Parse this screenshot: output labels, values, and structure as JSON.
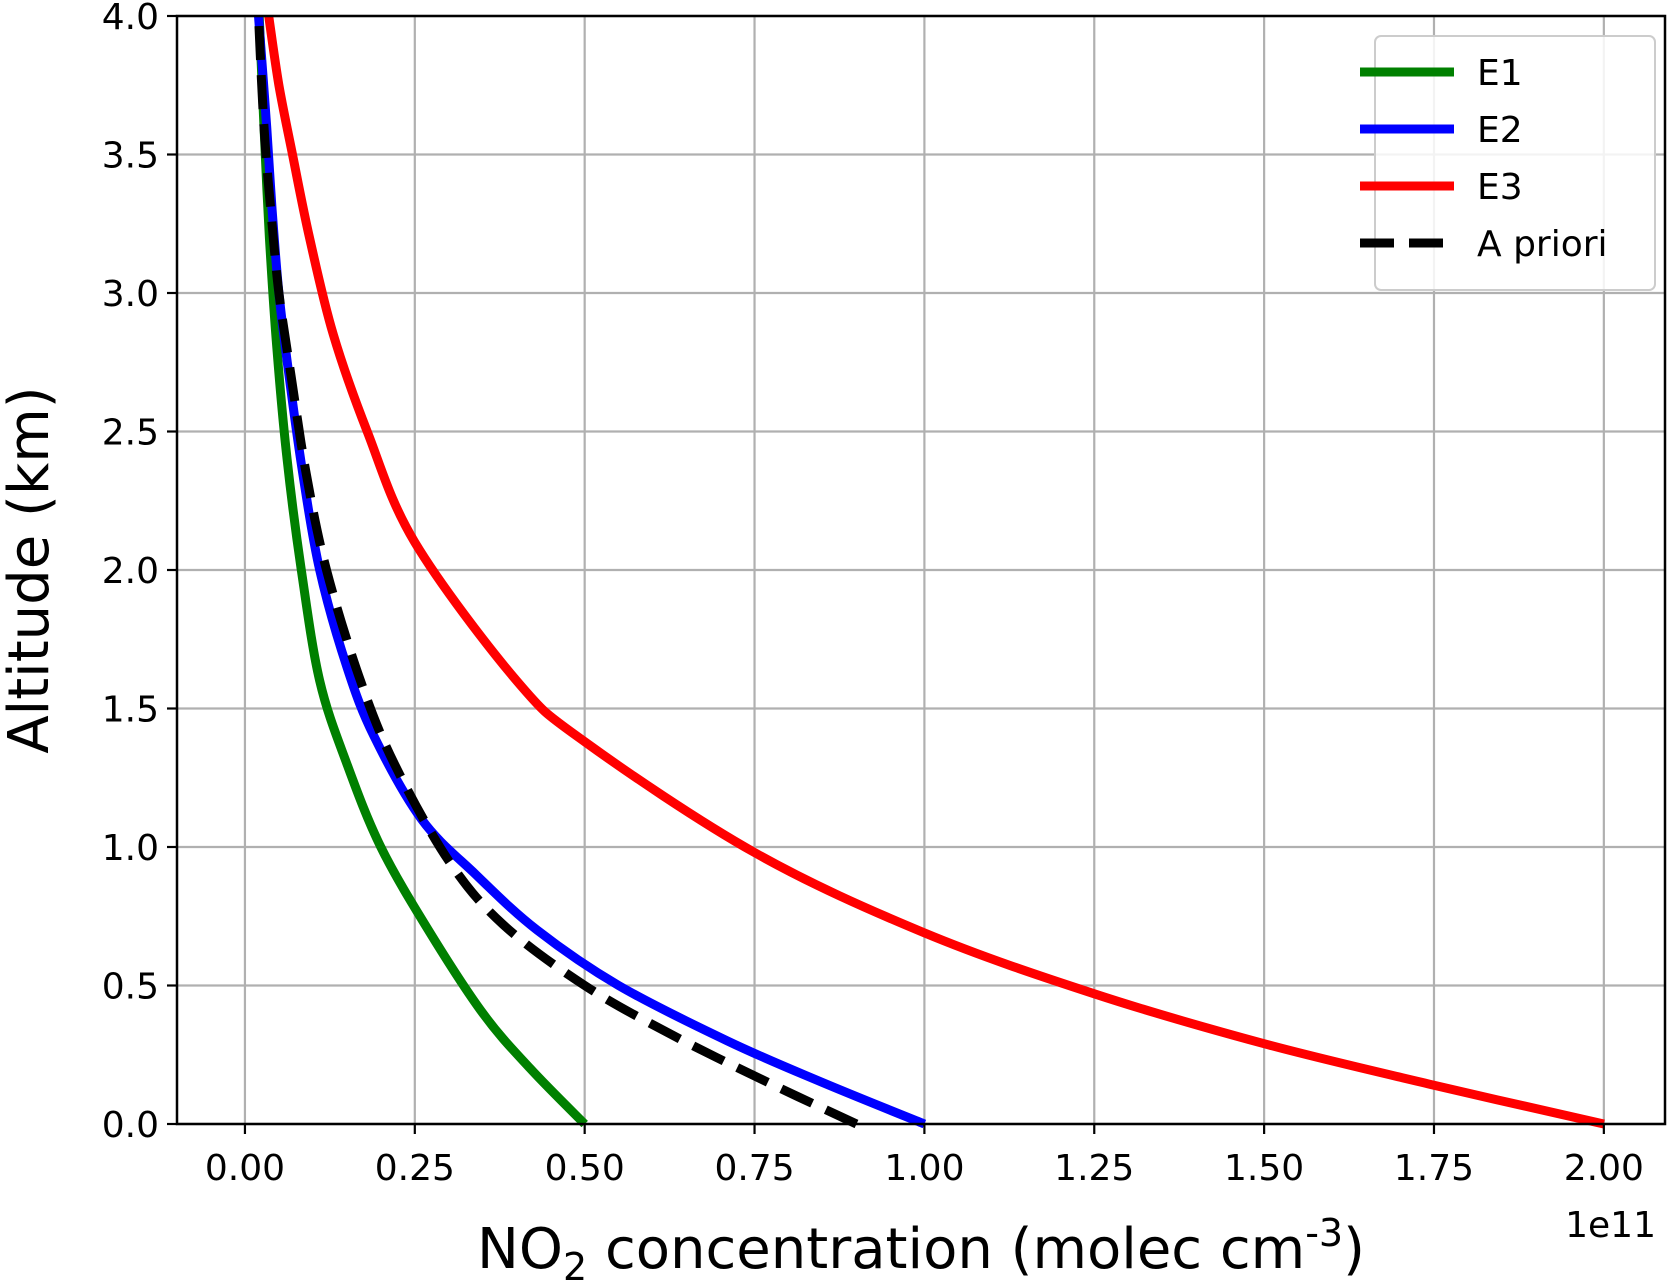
{
  "chart_data": {
    "type": "line",
    "xlabel_parts": {
      "main": "NO",
      "sub": "2",
      "rest": " concentration (molec cm",
      "sup": "-3",
      "end": ")"
    },
    "ylabel": "Altitude (km)",
    "x_offset_label": "1e11",
    "xlim": [
      -0.1,
      2.09
    ],
    "ylim": [
      0.0,
      4.0
    ],
    "x_ticks": [
      0.0,
      0.25,
      0.5,
      0.75,
      1.0,
      1.25,
      1.5,
      1.75,
      2.0
    ],
    "x_tick_labels": [
      "0.00",
      "0.25",
      "0.50",
      "0.75",
      "1.00",
      "1.25",
      "1.50",
      "1.75",
      "2.00"
    ],
    "y_ticks": [
      0.0,
      0.5,
      1.0,
      1.5,
      2.0,
      2.5,
      3.0,
      3.5,
      4.0
    ],
    "y_tick_labels": [
      "0.0",
      "0.5",
      "1.0",
      "1.5",
      "2.0",
      "2.5",
      "3.0",
      "3.5",
      "4.0"
    ],
    "grid": true,
    "legend_position": "top-right",
    "series": [
      {
        "name": "E1",
        "color": "#008000",
        "dash": "solid",
        "x": [
          0.5,
          0.42,
          0.35,
          0.27,
          0.2,
          0.15,
          0.11,
          0.083,
          0.062,
          0.047,
          0.036,
          0.028,
          0.021
        ],
        "y": [
          0.0,
          0.2,
          0.4,
          0.7,
          1.0,
          1.3,
          1.6,
          2.0,
          2.4,
          2.8,
          3.2,
          3.6,
          4.0
        ]
      },
      {
        "name": "E2",
        "color": "#0000ff",
        "dash": "solid",
        "x": [
          1.0,
          0.85,
          0.71,
          0.55,
          0.43,
          0.34,
          0.26,
          0.19,
          0.15,
          0.11,
          0.085,
          0.065,
          0.05,
          0.04,
          0.032,
          0.02
        ],
        "y": [
          0.0,
          0.15,
          0.3,
          0.5,
          0.7,
          0.9,
          1.1,
          1.4,
          1.65,
          2.0,
          2.35,
          2.7,
          3.0,
          3.3,
          3.6,
          4.0
        ]
      },
      {
        "name": "E3",
        "color": "#ff0000",
        "dash": "solid",
        "x": [
          2.0,
          1.75,
          1.5,
          1.25,
          1.0,
          0.75,
          0.5,
          0.4,
          0.25,
          0.18,
          0.13,
          0.095,
          0.07,
          0.05,
          0.035
        ],
        "y": [
          0.0,
          0.14,
          0.29,
          0.47,
          0.69,
          0.98,
          1.38,
          1.6,
          2.1,
          2.5,
          2.85,
          3.2,
          3.5,
          3.75,
          4.0
        ]
      },
      {
        "name": "A priori",
        "color": "#000000",
        "dash": "dashed",
        "x": [
          0.9,
          0.77,
          0.63,
          0.5,
          0.38,
          0.3,
          0.22,
          0.17,
          0.12,
          0.09,
          0.068,
          0.05,
          0.038,
          0.028,
          0.02
        ],
        "y": [
          0.0,
          0.15,
          0.32,
          0.5,
          0.72,
          0.95,
          1.3,
          1.6,
          2.0,
          2.35,
          2.7,
          3.0,
          3.3,
          3.6,
          4.0
        ]
      }
    ]
  }
}
